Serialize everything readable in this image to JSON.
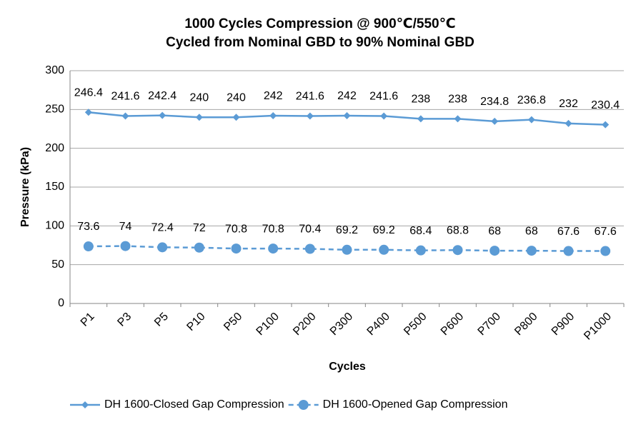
{
  "chart_data": {
    "type": "line",
    "title": [
      "1000 Cycles Compression @ 900℃/550℃",
      "Cycled from Nominal GBD to 90% Nominal GBD"
    ],
    "x_label": "Cycles",
    "y_label": "Pressure (kPa)",
    "categories": [
      "P1",
      "P3",
      "P5",
      "P10",
      "P50",
      "P100",
      "P200",
      "P300",
      "P400",
      "P500",
      "P600",
      "P700",
      "P800",
      "P900",
      "P1000"
    ],
    "series": [
      {
        "name": "DH 1600-Closed Gap Compression",
        "color": "#5b9bd5",
        "marker": "diamond",
        "line_style": "solid",
        "values": [
          246.4,
          241.6,
          242.4,
          240,
          240,
          242,
          241.6,
          242,
          241.6,
          238,
          238,
          234.8,
          236.8,
          232,
          230.4
        ]
      },
      {
        "name": "DH 1600-Opened Gap Compression",
        "color": "#5b9bd5",
        "marker": "circle",
        "line_style": "dashed",
        "values": [
          73.6,
          74,
          72.4,
          72,
          70.8,
          70.8,
          70.4,
          69.2,
          69.2,
          68.4,
          68.8,
          68,
          68,
          67.6,
          67.6
        ]
      }
    ],
    "ylim": [
      0,
      300
    ],
    "yticks": [
      0,
      50,
      100,
      150,
      200,
      250,
      300
    ],
    "grid": true,
    "legend": "bottom",
    "data_labels": true
  }
}
